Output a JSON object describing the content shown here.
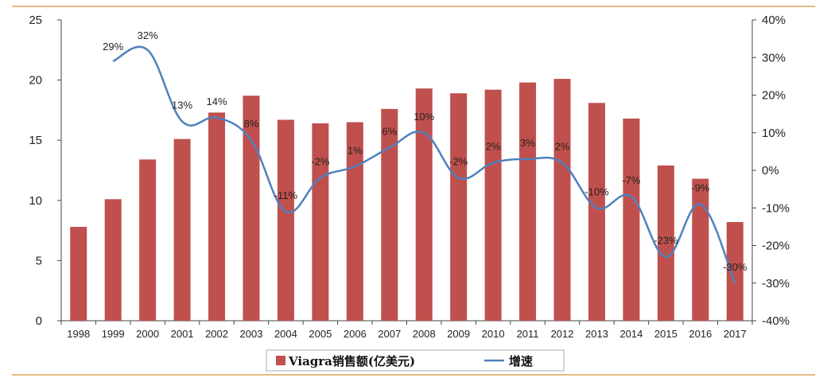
{
  "chart_data": {
    "type": "bar",
    "categories": [
      "1998",
      "1999",
      "2000",
      "2001",
      "2002",
      "2003",
      "2004",
      "2005",
      "2006",
      "2007",
      "2008",
      "2009",
      "2010",
      "2011",
      "2012",
      "2013",
      "2014",
      "2015",
      "2016",
      "2017"
    ],
    "series": [
      {
        "name": "Viagra销售额(亿美元)",
        "type": "bar",
        "axis": "left",
        "color": "#c0504d",
        "values": [
          7.8,
          10.1,
          13.4,
          15.1,
          17.3,
          18.7,
          16.7,
          16.4,
          16.5,
          17.6,
          19.3,
          18.9,
          19.2,
          19.8,
          20.1,
          18.1,
          16.8,
          12.9,
          11.8,
          8.2
        ]
      },
      {
        "name": "增速",
        "type": "line",
        "axis": "right",
        "color": "#4f81bd",
        "values": [
          null,
          29,
          32,
          13,
          14,
          8,
          -11,
          -2,
          1,
          6,
          10,
          -2,
          2,
          3,
          2,
          -10,
          -7,
          -23,
          -9,
          -30
        ],
        "labels": [
          "",
          "29%",
          "32%",
          "13%",
          "14%",
          "8%",
          "-11%",
          "-2%",
          "1%",
          "6%",
          "10%",
          "-2%",
          "2%",
          "3%",
          "2%",
          "-10%",
          "-7%",
          "-23%",
          "-9%",
          "-30%"
        ]
      }
    ],
    "left_axis": {
      "min": 0,
      "max": 25,
      "ticks": [
        0,
        5,
        10,
        15,
        20,
        25
      ],
      "tick_labels": [
        "0",
        "5",
        "10",
        "15",
        "20",
        "25"
      ]
    },
    "right_axis": {
      "min": -40,
      "max": 40,
      "ticks": [
        -40,
        -30,
        -20,
        -10,
        0,
        10,
        20,
        30,
        40
      ],
      "tick_labels": [
        "-40%",
        "-30%",
        "-20%",
        "-10%",
        "0%",
        "10%",
        "20%",
        "30%",
        "40%"
      ]
    },
    "legend": {
      "position": "bottom",
      "items": [
        {
          "label": "Viagra销售额(亿美元)",
          "marker": "rect",
          "color": "#c0504d"
        },
        {
          "label": "增速",
          "marker": "line",
          "color": "#4f81bd"
        }
      ]
    },
    "grid": false
  },
  "colors": {
    "frame_line": "#e2a05a",
    "axis": "#444444"
  }
}
